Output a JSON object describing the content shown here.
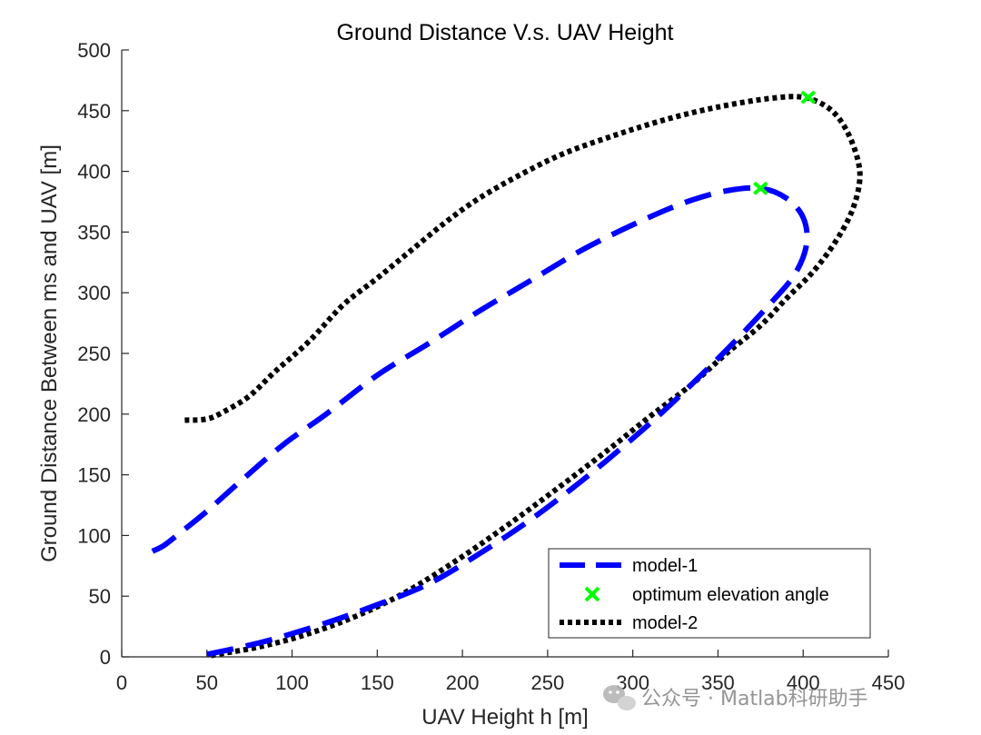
{
  "chart_data": {
    "type": "line",
    "title": "Ground Distance V.s. UAV  Height",
    "xlabel": "UAV Height h [m]",
    "ylabel": "Ground Distance Between ms and UAV [m]",
    "xlim": [
      0,
      450
    ],
    "ylim": [
      0,
      500
    ],
    "xticks": [
      "0",
      "50",
      "100",
      "150",
      "200",
      "250",
      "300",
      "350",
      "400",
      "450"
    ],
    "yticks": [
      "0",
      "50",
      "100",
      "150",
      "200",
      "250",
      "300",
      "350",
      "400",
      "450",
      "500"
    ],
    "legend_position": "bottom-right",
    "series": [
      {
        "name": "model-1",
        "style": "dashed",
        "color": "#0000ff",
        "x": [
          18,
          25,
          35,
          50,
          70,
          95,
          120,
          150,
          180,
          210,
          240,
          270,
          300,
          330,
          355,
          375,
          390,
          400,
          402,
          395,
          380,
          360,
          340,
          320,
          300,
          270,
          240,
          210,
          180,
          150,
          120,
          90,
          70,
          50
        ],
        "y": [
          87,
          92,
          103,
          120,
          145,
          175,
          200,
          232,
          258,
          285,
          310,
          335,
          356,
          374,
          384,
          386,
          378,
          362,
          340,
          315,
          290,
          260,
          232,
          205,
          180,
          145,
          113,
          85,
          60,
          43,
          28,
          15,
          8,
          2
        ]
      },
      {
        "name": "optimum elevation angle",
        "style": "marker",
        "color": "#00ff00",
        "x": [
          375,
          403
        ],
        "y": [
          386,
          461
        ]
      },
      {
        "name": "model-2",
        "style": "dotted",
        "color": "#000000",
        "x": [
          37,
          50,
          60,
          75,
          90,
          110,
          130,
          150,
          170,
          190,
          210,
          235,
          260,
          290,
          320,
          350,
          380,
          400,
          415,
          425,
          432,
          433,
          428,
          418,
          405,
          390,
          375,
          355,
          335,
          310,
          285,
          255,
          225,
          195,
          165,
          135,
          105,
          80,
          60,
          52
        ],
        "y": [
          195,
          196,
          202,
          215,
          235,
          260,
          290,
          312,
          335,
          358,
          378,
          398,
          415,
          430,
          443,
          453,
          460,
          461,
          452,
          435,
          410,
          390,
          365,
          340,
          316,
          295,
          273,
          250,
          225,
          198,
          170,
          138,
          107,
          78,
          52,
          32,
          17,
          8,
          3,
          1
        ]
      }
    ]
  },
  "watermark": {
    "text": "公众号 · Matlab科研助手",
    "icon": "wechat-icon"
  }
}
